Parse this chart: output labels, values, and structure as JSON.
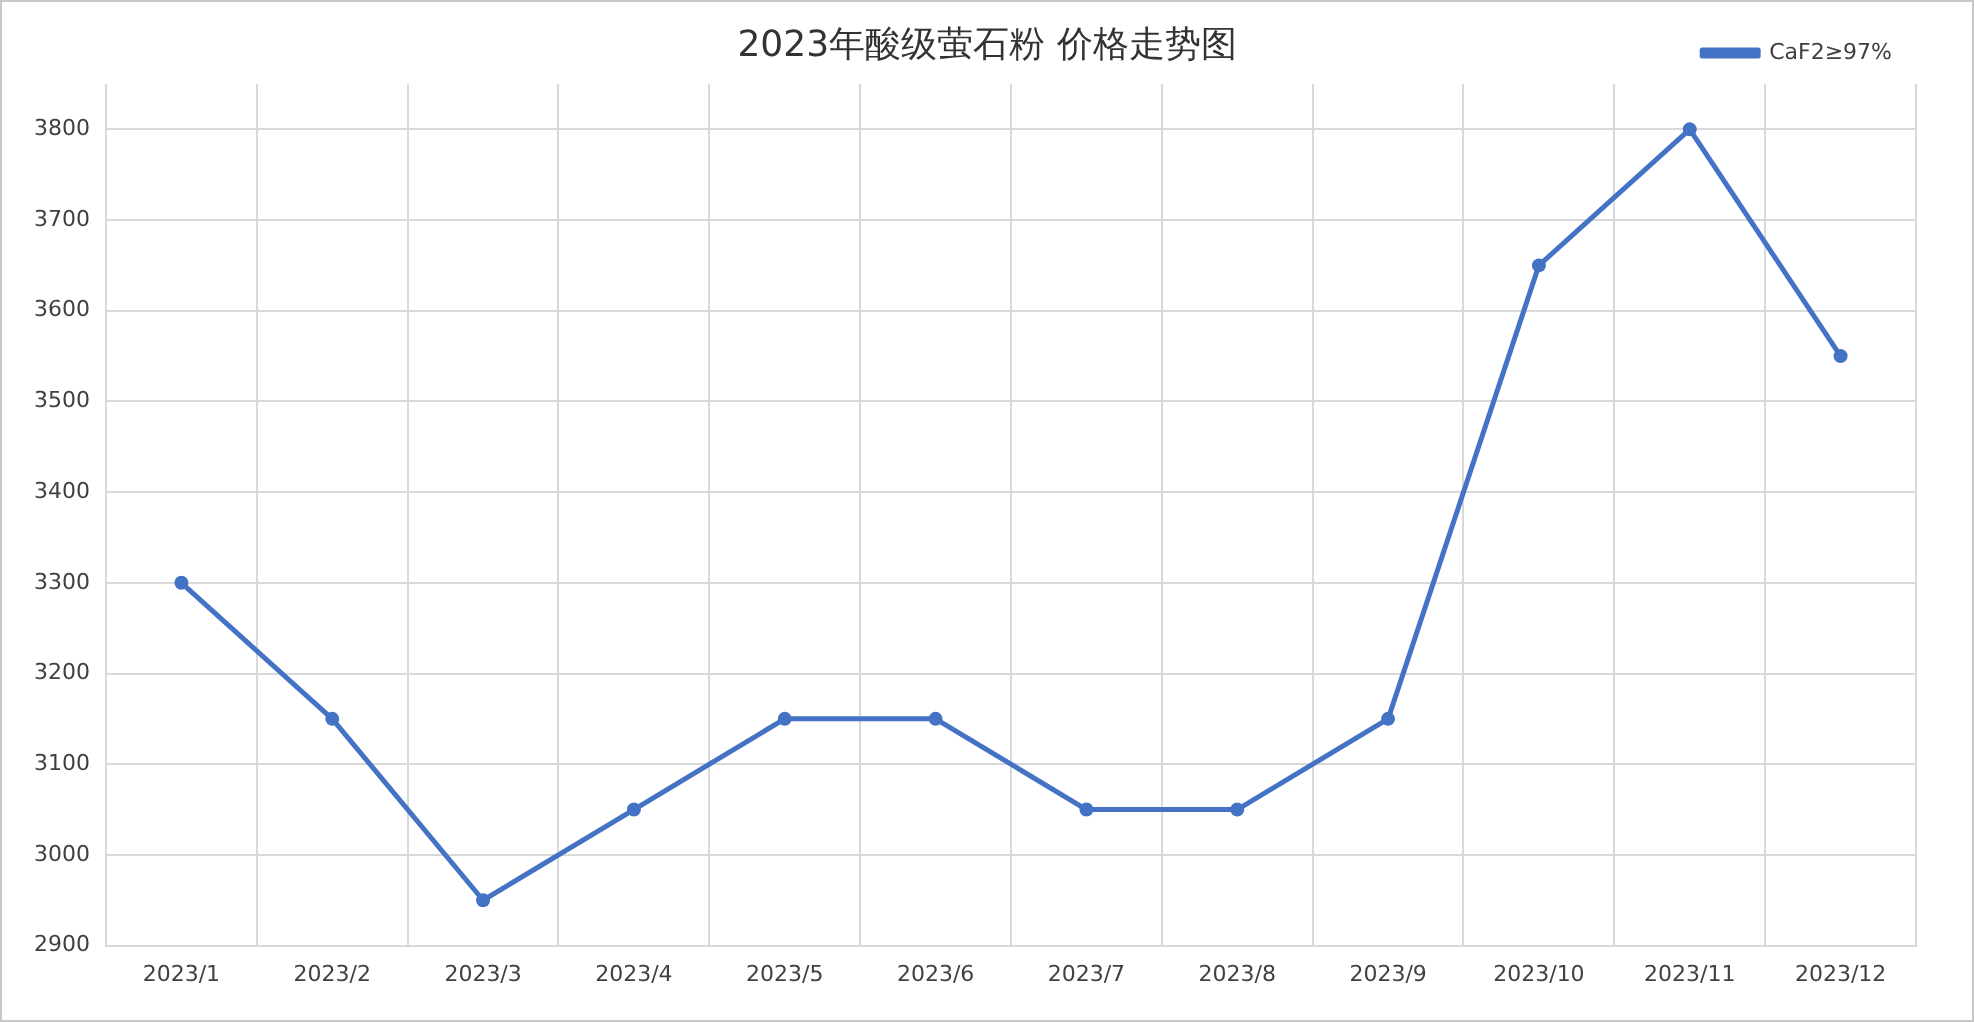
{
  "chart_data": {
    "type": "line",
    "title": "2023年酸级萤石粉 价格走势图",
    "categories": [
      "2023/1",
      "2023/2",
      "2023/3",
      "2023/4",
      "2023/5",
      "2023/6",
      "2023/7",
      "2023/8",
      "2023/9",
      "2023/10",
      "2023/11",
      "2023/12"
    ],
    "series": [
      {
        "name": "CaF2≥97%",
        "color": "#4472c4",
        "values": [
          3300,
          3150,
          2950,
          3050,
          3150,
          3150,
          3050,
          3050,
          3150,
          3650,
          3800,
          3550
        ]
      }
    ],
    "ylim": [
      2900,
      3850
    ],
    "yticks": [
      2900,
      3000,
      3100,
      3200,
      3300,
      3400,
      3500,
      3600,
      3700,
      3800
    ],
    "grid": true,
    "legend": "top right",
    "marker": "circle",
    "line_style": "solid"
  }
}
